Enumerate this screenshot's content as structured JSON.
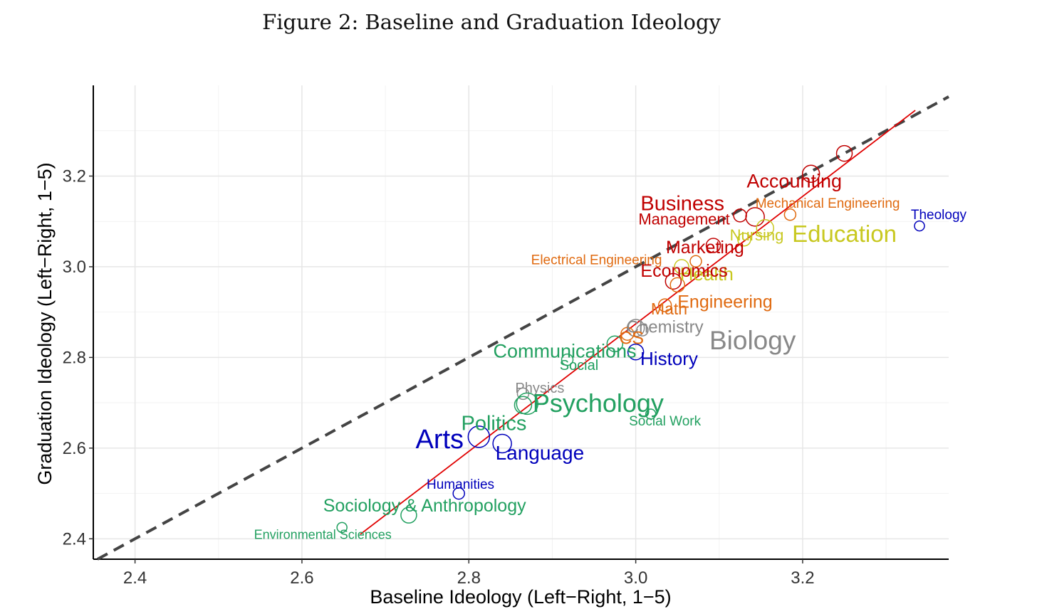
{
  "figure_title": "Figure 2: Baseline and Graduation Ideology",
  "colors": {
    "business": "#c00000",
    "engineering": "#e06a10",
    "health": "#c8c820",
    "science": "#888888",
    "social": "#22a060",
    "humanities": "#0000bb",
    "fit_line": "#e00000",
    "reference_line": "#444444"
  },
  "chart_data": {
    "type": "scatter",
    "title": "",
    "xlabel": "Baseline Ideology (Left−Right, 1−5)",
    "ylabel": "Graduation Ideology (Left−Right, 1−5)",
    "xlim": [
      2.35,
      3.375
    ],
    "ylim": [
      2.355,
      3.4
    ],
    "xticks": [
      2.4,
      2.6,
      2.8,
      3.0,
      3.2
    ],
    "yticks": [
      2.4,
      2.6,
      2.8,
      3.0,
      3.2
    ],
    "xtick_labels": [
      "2.4",
      "2.6",
      "2.8",
      "3.0",
      "3.2"
    ],
    "ytick_labels": [
      "2.4",
      "2.6",
      "2.8",
      "3.0",
      "3.2"
    ],
    "grid": true,
    "reference_line": {
      "style": "dashed",
      "slope": 1,
      "intercept": 0
    },
    "fit_line": {
      "x": [
        2.67,
        3.335
      ],
      "y": [
        2.41,
        3.345
      ]
    },
    "points": [
      {
        "label": "Accounting",
        "group": "business",
        "x": 3.21,
        "y": 3.205,
        "size": 12,
        "lx": 3.19,
        "ly": 3.175,
        "fs": 27
      },
      {
        "label": "",
        "group": "business",
        "x": 3.25,
        "y": 3.25,
        "size": 11
      },
      {
        "label": "Business",
        "group": "business",
        "x": 3.143,
        "y": 3.11,
        "size": 13,
        "lx": 3.056,
        "ly": 3.125,
        "fs": 29
      },
      {
        "label": "Management",
        "group": "business",
        "x": 3.125,
        "y": 3.113,
        "size": 9,
        "lx": 3.058,
        "ly": 3.093,
        "fs": 22
      },
      {
        "label": "Mechanical Engineering",
        "group": "engineering",
        "x": 3.185,
        "y": 3.115,
        "size": 8,
        "lx": 3.23,
        "ly": 3.13,
        "fs": 19
      },
      {
        "label": "Theology",
        "group": "humanities",
        "x": 3.34,
        "y": 3.09,
        "size": 7,
        "lx": 3.363,
        "ly": 3.105,
        "fs": 19
      },
      {
        "label": "Education",
        "group": "health",
        "x": 3.155,
        "y": 3.085,
        "size": 12,
        "lx": 3.25,
        "ly": 3.055,
        "fs": 33
      },
      {
        "label": "Nursing",
        "group": "health",
        "x": 3.13,
        "y": 3.06,
        "size": 9,
        "lx": 3.145,
        "ly": 3.058,
        "fs": 22
      },
      {
        "label": "Marketing",
        "group": "business",
        "x": 3.093,
        "y": 3.047,
        "size": 10,
        "lx": 3.083,
        "ly": 3.03,
        "fs": 25
      },
      {
        "label": "Electrical Engineering",
        "group": "engineering",
        "x": 3.072,
        "y": 3.012,
        "size": 8,
        "lx": 2.953,
        "ly": 3.005,
        "fs": 19
      },
      {
        "label": "Health",
        "group": "health",
        "x": 3.055,
        "y": 3.0,
        "size": 10,
        "lx": 3.085,
        "ly": 2.97,
        "fs": 26
      },
      {
        "label": "Economics",
        "group": "business",
        "x": 3.045,
        "y": 2.968,
        "size": 11,
        "lx": 3.058,
        "ly": 2.978,
        "fs": 25
      },
      {
        "label": "Engineering",
        "group": "engineering",
        "x": 3.05,
        "y": 2.96,
        "size": 10,
        "lx": 3.107,
        "ly": 2.91,
        "fs": 25
      },
      {
        "label": "Math",
        "group": "engineering",
        "x": 3.035,
        "y": 2.915,
        "size": 9,
        "lx": 3.04,
        "ly": 2.895,
        "fs": 23
      },
      {
        "label": "Chemistry",
        "group": "science",
        "x": 3.008,
        "y": 2.86,
        "size": 8,
        "lx": 3.035,
        "ly": 2.855,
        "fs": 24
      },
      {
        "label": "Biology",
        "group": "science",
        "x": 3.0,
        "y": 2.865,
        "size": 12,
        "lx": 3.14,
        "ly": 2.818,
        "fs": 37
      },
      {
        "label": "CS",
        "group": "engineering",
        "x": 2.99,
        "y": 2.852,
        "size": 9,
        "lx": 2.995,
        "ly": 2.83,
        "fs": 25
      },
      {
        "label": "Communications",
        "group": "social",
        "x": 2.975,
        "y": 2.83,
        "size": 11,
        "lx": 2.915,
        "ly": 2.8,
        "fs": 27
      },
      {
        "label": "History",
        "group": "humanities",
        "x": 3.0,
        "y": 2.812,
        "size": 11,
        "lx": 3.04,
        "ly": 2.783,
        "fs": 26
      },
      {
        "label": "Social",
        "group": "social",
        "x": 2.918,
        "y": 2.795,
        "size": 8,
        "lx": 2.932,
        "ly": 2.772,
        "fs": 20
      },
      {
        "label": "Physics",
        "group": "science",
        "x": 2.865,
        "y": 2.72,
        "size": 8,
        "lx": 2.885,
        "ly": 2.722,
        "fs": 20
      },
      {
        "label": "Psychology",
        "group": "social",
        "x": 2.87,
        "y": 2.698,
        "size": 15,
        "lx": 2.955,
        "ly": 2.68,
        "fs": 36
      },
      {
        "label": "Social Work",
        "group": "social",
        "x": 3.018,
        "y": 2.675,
        "size": 7,
        "lx": 3.035,
        "ly": 2.65,
        "fs": 19
      },
      {
        "label": "Politics",
        "group": "social",
        "x": 2.865,
        "y": 2.695,
        "size": 12,
        "lx": 2.83,
        "ly": 2.64,
        "fs": 29
      },
      {
        "label": "Arts",
        "group": "humanities",
        "x": 2.812,
        "y": 2.625,
        "size": 15,
        "lx": 2.765,
        "ly": 2.6,
        "fs": 38
      },
      {
        "label": "Language",
        "group": "humanities",
        "x": 2.84,
        "y": 2.61,
        "size": 13,
        "lx": 2.885,
        "ly": 2.575,
        "fs": 28
      },
      {
        "label": "Humanities",
        "group": "humanities",
        "x": 2.788,
        "y": 2.5,
        "size": 8,
        "lx": 2.79,
        "ly": 2.51,
        "fs": 19
      },
      {
        "label": "Sociology & Anthropology",
        "group": "social",
        "x": 2.728,
        "y": 2.452,
        "size": 11,
        "lx": 2.747,
        "ly": 2.46,
        "fs": 25
      },
      {
        "label": "Environmental Sciences",
        "group": "social",
        "x": 2.648,
        "y": 2.425,
        "size": 7,
        "lx": 2.625,
        "ly": 2.4,
        "fs": 18
      }
    ]
  }
}
